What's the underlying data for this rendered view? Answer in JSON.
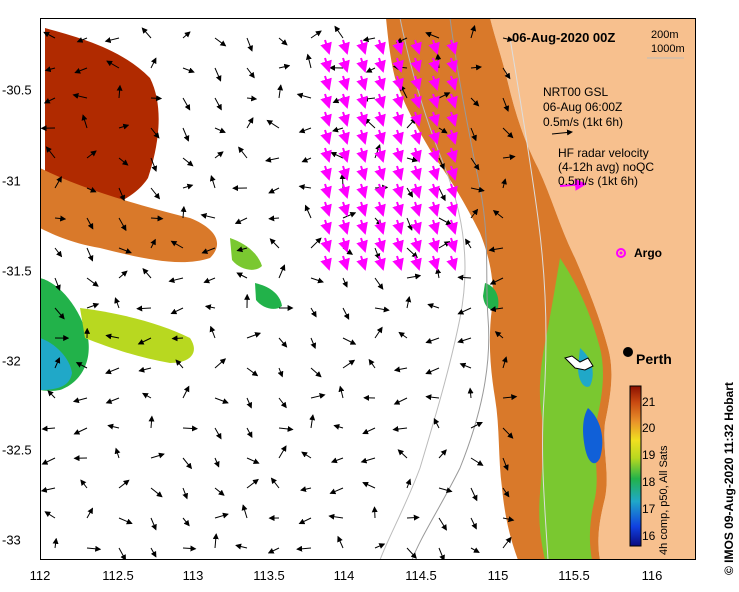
{
  "title": "06-Aug-2020 00Z",
  "depth_legend": {
    "line1": "200m",
    "line2": "1000m"
  },
  "gsl_legend": {
    "line1": "NRT00 GSL",
    "line2": "06-Aug 06:00Z",
    "line3": "0.5m/s (1kt 6h)"
  },
  "radar_legend": {
    "line1": "HF radar velocity",
    "line2": "(4-12h avg) noQC",
    "line3": "0.5m/s (1kt 6h)"
  },
  "argo_label": "Argo",
  "city_label": "Perth",
  "credit": "©  IMOS 09-Aug-2020 11:32 Hobart",
  "colorbar_label": "4h comp, p50, All Sats",
  "colorbar_ticks": [
    "16",
    "17",
    "18",
    "19",
    "20",
    "21"
  ],
  "x_ticks": [
    "112",
    "112.5",
    "113",
    "113.5",
    "114",
    "114.5",
    "115",
    "115.5",
    "116"
  ],
  "y_ticks": [
    "-30.5",
    "-31",
    "-31.5",
    "-32",
    "-32.5",
    "-33"
  ],
  "colors": {
    "land": "#f7c08e",
    "radar_arrow": "#ff00ff",
    "gsl_arrow": "#000000",
    "sst_warm": "#b02a00",
    "sst_orange": "#d9792a",
    "sst_green": "#22b24a",
    "sst_cyan": "#20a8c8",
    "sst_blue": "#1060d8"
  },
  "icons": {
    "argo": "argo-float-icon",
    "city": "city-marker-icon"
  }
}
